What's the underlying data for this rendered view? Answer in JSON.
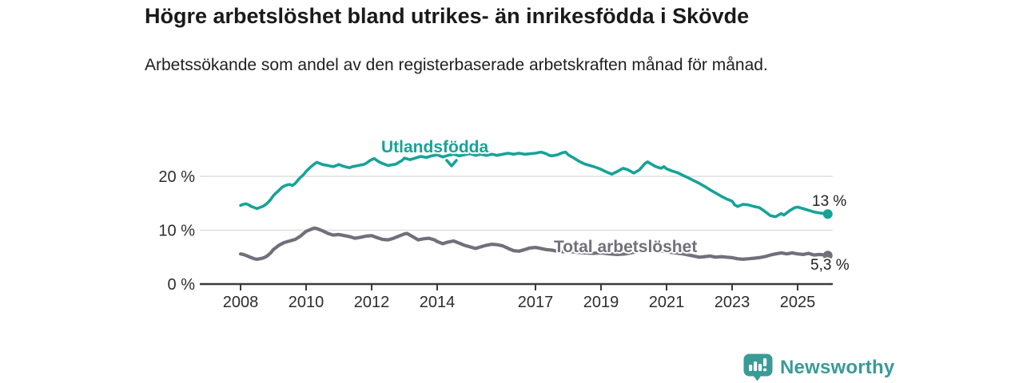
{
  "chart_data": {
    "type": "line",
    "title": "Högre arbetslöshet bland utrikes- än inrikesfödda i Skövde",
    "subtitle": "Arbetssökande som andel av den registerbaserade arbetskraften månad för månad.",
    "xlabel": "",
    "ylabel": "",
    "xlim": [
      2007.8,
      2026.1
    ],
    "ylim": [
      0,
      26.5
    ],
    "grid": "horizontal",
    "legend_position": "inline-labels",
    "x_ticks": [
      {
        "year": 2008,
        "label": "2008"
      },
      {
        "year": 2010,
        "label": "2010"
      },
      {
        "year": 2012,
        "label": "2012"
      },
      {
        "year": 2014,
        "label": "2014"
      },
      {
        "year": 2017,
        "label": "2017"
      },
      {
        "year": 2019,
        "label": "2019"
      },
      {
        "year": 2021,
        "label": "2021"
      },
      {
        "year": 2023,
        "label": "2023"
      },
      {
        "year": 2025,
        "label": "2025"
      }
    ],
    "y_ticks": [
      {
        "value": 0,
        "label": "0 %"
      },
      {
        "value": 10,
        "label": "10 %"
      },
      {
        "value": 20,
        "label": "20 %"
      }
    ],
    "series": [
      {
        "name": "Utlandsfödda",
        "color": "#17a398",
        "end_label": "13 %",
        "end_value": 13.0,
        "points": [
          [
            2008.0,
            14.6
          ],
          [
            2008.08,
            14.8
          ],
          [
            2008.17,
            14.9
          ],
          [
            2008.25,
            14.7
          ],
          [
            2008.33,
            14.4
          ],
          [
            2008.42,
            14.2
          ],
          [
            2008.5,
            14.0
          ],
          [
            2008.58,
            14.2
          ],
          [
            2008.67,
            14.4
          ],
          [
            2008.75,
            14.7
          ],
          [
            2008.83,
            15.1
          ],
          [
            2008.92,
            15.7
          ],
          [
            2009.0,
            16.4
          ],
          [
            2009.08,
            16.9
          ],
          [
            2009.17,
            17.4
          ],
          [
            2009.25,
            17.9
          ],
          [
            2009.33,
            18.2
          ],
          [
            2009.42,
            18.4
          ],
          [
            2009.5,
            18.5
          ],
          [
            2009.58,
            18.3
          ],
          [
            2009.67,
            18.7
          ],
          [
            2009.75,
            19.3
          ],
          [
            2009.83,
            19.8
          ],
          [
            2009.92,
            20.3
          ],
          [
            2010.0,
            20.9
          ],
          [
            2010.08,
            21.4
          ],
          [
            2010.17,
            21.9
          ],
          [
            2010.25,
            22.3
          ],
          [
            2010.33,
            22.6
          ],
          [
            2010.42,
            22.4
          ],
          [
            2010.5,
            22.2
          ],
          [
            2010.58,
            22.1
          ],
          [
            2010.67,
            22.0
          ],
          [
            2010.75,
            21.9
          ],
          [
            2010.83,
            21.8
          ],
          [
            2010.92,
            22.0
          ],
          [
            2011.0,
            22.2
          ],
          [
            2011.08,
            22.0
          ],
          [
            2011.17,
            21.8
          ],
          [
            2011.25,
            21.7
          ],
          [
            2011.33,
            21.6
          ],
          [
            2011.42,
            21.8
          ],
          [
            2011.5,
            21.9
          ],
          [
            2011.58,
            22.0
          ],
          [
            2011.67,
            22.1
          ],
          [
            2011.75,
            22.2
          ],
          [
            2011.83,
            22.4
          ],
          [
            2011.92,
            22.8
          ],
          [
            2012.0,
            23.1
          ],
          [
            2012.08,
            23.3
          ],
          [
            2012.17,
            22.9
          ],
          [
            2012.25,
            22.6
          ],
          [
            2012.33,
            22.4
          ],
          [
            2012.42,
            22.2
          ],
          [
            2012.5,
            22.0
          ],
          [
            2012.58,
            22.1
          ],
          [
            2012.67,
            22.2
          ],
          [
            2012.75,
            22.3
          ],
          [
            2012.83,
            22.6
          ],
          [
            2012.92,
            22.9
          ],
          [
            2013.0,
            23.4
          ],
          [
            2013.17,
            23.1
          ],
          [
            2013.33,
            23.4
          ],
          [
            2013.5,
            23.7
          ],
          [
            2013.67,
            23.5
          ],
          [
            2013.83,
            23.8
          ],
          [
            2014.0,
            24.0
          ],
          [
            2014.17,
            23.6
          ],
          [
            2014.33,
            23.9
          ],
          [
            2014.5,
            24.1
          ],
          [
            2014.67,
            23.8
          ],
          [
            2014.83,
            24.0
          ],
          [
            2015.0,
            24.2
          ],
          [
            2015.17,
            23.9
          ],
          [
            2015.33,
            24.1
          ],
          [
            2015.5,
            23.9
          ],
          [
            2015.67,
            24.1
          ],
          [
            2015.83,
            23.9
          ],
          [
            2016.0,
            24.1
          ],
          [
            2016.17,
            24.3
          ],
          [
            2016.33,
            24.1
          ],
          [
            2016.5,
            24.3
          ],
          [
            2016.67,
            24.1
          ],
          [
            2016.83,
            24.2
          ],
          [
            2017.0,
            24.3
          ],
          [
            2017.17,
            24.5
          ],
          [
            2017.33,
            24.2
          ],
          [
            2017.42,
            23.9
          ],
          [
            2017.5,
            23.8
          ],
          [
            2017.67,
            24.0
          ],
          [
            2017.83,
            24.4
          ],
          [
            2017.92,
            24.5
          ],
          [
            2018.0,
            24.0
          ],
          [
            2018.17,
            23.4
          ],
          [
            2018.33,
            22.8
          ],
          [
            2018.5,
            22.3
          ],
          [
            2018.67,
            22.0
          ],
          [
            2018.83,
            21.7
          ],
          [
            2019.0,
            21.3
          ],
          [
            2019.17,
            20.8
          ],
          [
            2019.33,
            20.4
          ],
          [
            2019.5,
            20.9
          ],
          [
            2019.67,
            21.5
          ],
          [
            2019.83,
            21.2
          ],
          [
            2020.0,
            20.6
          ],
          [
            2020.17,
            21.2
          ],
          [
            2020.33,
            22.3
          ],
          [
            2020.42,
            22.7
          ],
          [
            2020.5,
            22.4
          ],
          [
            2020.67,
            21.8
          ],
          [
            2020.83,
            21.5
          ],
          [
            2020.92,
            21.8
          ],
          [
            2021.0,
            21.4
          ],
          [
            2021.17,
            21.0
          ],
          [
            2021.33,
            20.7
          ],
          [
            2021.5,
            20.2
          ],
          [
            2021.67,
            19.7
          ],
          [
            2021.83,
            19.2
          ],
          [
            2022.0,
            18.7
          ],
          [
            2022.17,
            18.1
          ],
          [
            2022.33,
            17.5
          ],
          [
            2022.5,
            16.9
          ],
          [
            2022.67,
            16.3
          ],
          [
            2022.83,
            15.8
          ],
          [
            2023.0,
            15.4
          ],
          [
            2023.08,
            14.7
          ],
          [
            2023.17,
            14.4
          ],
          [
            2023.33,
            14.8
          ],
          [
            2023.5,
            14.7
          ],
          [
            2023.67,
            14.4
          ],
          [
            2023.83,
            14.2
          ],
          [
            2024.0,
            13.5
          ],
          [
            2024.17,
            12.7
          ],
          [
            2024.33,
            12.5
          ],
          [
            2024.5,
            13.1
          ],
          [
            2024.58,
            12.8
          ],
          [
            2024.75,
            13.6
          ],
          [
            2024.92,
            14.2
          ],
          [
            2025.0,
            14.3
          ],
          [
            2025.17,
            14.0
          ],
          [
            2025.33,
            13.7
          ],
          [
            2025.5,
            13.4
          ],
          [
            2025.67,
            13.2
          ],
          [
            2025.83,
            13.1
          ],
          [
            2025.92,
            13.0
          ]
        ]
      },
      {
        "name": "Total arbetslöshet",
        "color": "#71707a",
        "end_label": "5,3 %",
        "end_value": 5.3,
        "points": [
          [
            2008.0,
            5.6
          ],
          [
            2008.08,
            5.5
          ],
          [
            2008.17,
            5.3
          ],
          [
            2008.25,
            5.1
          ],
          [
            2008.33,
            4.9
          ],
          [
            2008.42,
            4.7
          ],
          [
            2008.5,
            4.6
          ],
          [
            2008.58,
            4.7
          ],
          [
            2008.67,
            4.8
          ],
          [
            2008.75,
            5.0
          ],
          [
            2008.83,
            5.3
          ],
          [
            2008.92,
            5.8
          ],
          [
            2009.0,
            6.4
          ],
          [
            2009.17,
            7.2
          ],
          [
            2009.33,
            7.7
          ],
          [
            2009.5,
            8.0
          ],
          [
            2009.67,
            8.3
          ],
          [
            2009.83,
            8.9
          ],
          [
            2010.0,
            9.8
          ],
          [
            2010.17,
            10.2
          ],
          [
            2010.25,
            10.4
          ],
          [
            2010.33,
            10.3
          ],
          [
            2010.5,
            9.9
          ],
          [
            2010.67,
            9.4
          ],
          [
            2010.83,
            9.1
          ],
          [
            2011.0,
            9.2
          ],
          [
            2011.17,
            9.0
          ],
          [
            2011.33,
            8.8
          ],
          [
            2011.5,
            8.5
          ],
          [
            2011.67,
            8.7
          ],
          [
            2011.83,
            8.9
          ],
          [
            2012.0,
            9.0
          ],
          [
            2012.17,
            8.6
          ],
          [
            2012.33,
            8.3
          ],
          [
            2012.5,
            8.2
          ],
          [
            2012.67,
            8.5
          ],
          [
            2012.83,
            8.9
          ],
          [
            2013.0,
            9.3
          ],
          [
            2013.08,
            9.4
          ],
          [
            2013.25,
            8.8
          ],
          [
            2013.42,
            8.2
          ],
          [
            2013.58,
            8.4
          ],
          [
            2013.75,
            8.5
          ],
          [
            2013.92,
            8.2
          ],
          [
            2014.0,
            7.9
          ],
          [
            2014.17,
            7.5
          ],
          [
            2014.33,
            7.8
          ],
          [
            2014.5,
            8.0
          ],
          [
            2014.67,
            7.6
          ],
          [
            2014.83,
            7.2
          ],
          [
            2015.0,
            6.9
          ],
          [
            2015.17,
            6.6
          ],
          [
            2015.33,
            6.9
          ],
          [
            2015.5,
            7.2
          ],
          [
            2015.67,
            7.4
          ],
          [
            2015.83,
            7.3
          ],
          [
            2016.0,
            7.1
          ],
          [
            2016.17,
            6.6
          ],
          [
            2016.33,
            6.2
          ],
          [
            2016.5,
            6.1
          ],
          [
            2016.67,
            6.4
          ],
          [
            2016.83,
            6.7
          ],
          [
            2017.0,
            6.8
          ],
          [
            2017.17,
            6.6
          ],
          [
            2017.33,
            6.4
          ],
          [
            2017.5,
            6.3
          ],
          [
            2017.67,
            6.1
          ],
          [
            2017.83,
            6.0
          ],
          [
            2018.0,
            6.1
          ],
          [
            2018.25,
            5.9
          ],
          [
            2018.5,
            5.8
          ],
          [
            2018.75,
            5.7
          ],
          [
            2019.0,
            5.8
          ],
          [
            2019.25,
            5.6
          ],
          [
            2019.5,
            5.5
          ],
          [
            2019.75,
            5.6
          ],
          [
            2020.0,
            5.9
          ],
          [
            2020.25,
            6.4
          ],
          [
            2020.5,
            6.5
          ],
          [
            2020.75,
            6.2
          ],
          [
            2021.0,
            6.0
          ],
          [
            2021.25,
            5.8
          ],
          [
            2021.5,
            5.6
          ],
          [
            2021.75,
            5.3
          ],
          [
            2022.0,
            5.0
          ],
          [
            2022.17,
            5.1
          ],
          [
            2022.33,
            5.2
          ],
          [
            2022.5,
            5.0
          ],
          [
            2022.67,
            5.1
          ],
          [
            2022.83,
            5.0
          ],
          [
            2023.0,
            4.9
          ],
          [
            2023.17,
            4.7
          ],
          [
            2023.33,
            4.6
          ],
          [
            2023.5,
            4.7
          ],
          [
            2023.67,
            4.8
          ],
          [
            2023.83,
            4.9
          ],
          [
            2024.0,
            5.1
          ],
          [
            2024.17,
            5.4
          ],
          [
            2024.33,
            5.6
          ],
          [
            2024.5,
            5.8
          ],
          [
            2024.67,
            5.6
          ],
          [
            2024.83,
            5.8
          ],
          [
            2025.0,
            5.6
          ],
          [
            2025.17,
            5.5
          ],
          [
            2025.33,
            5.7
          ],
          [
            2025.5,
            5.4
          ],
          [
            2025.67,
            5.5
          ],
          [
            2025.83,
            5.4
          ],
          [
            2025.92,
            5.3
          ]
        ]
      }
    ],
    "colors": {
      "accent_teal": "#17a398",
      "line_gray": "#71707a",
      "axis": "#3a3a3a",
      "gridline": "#dedede",
      "tick_text": "#2d2d2d",
      "brand_teal": "#399b97"
    }
  },
  "footer": {
    "brand": "Newsworthy"
  }
}
